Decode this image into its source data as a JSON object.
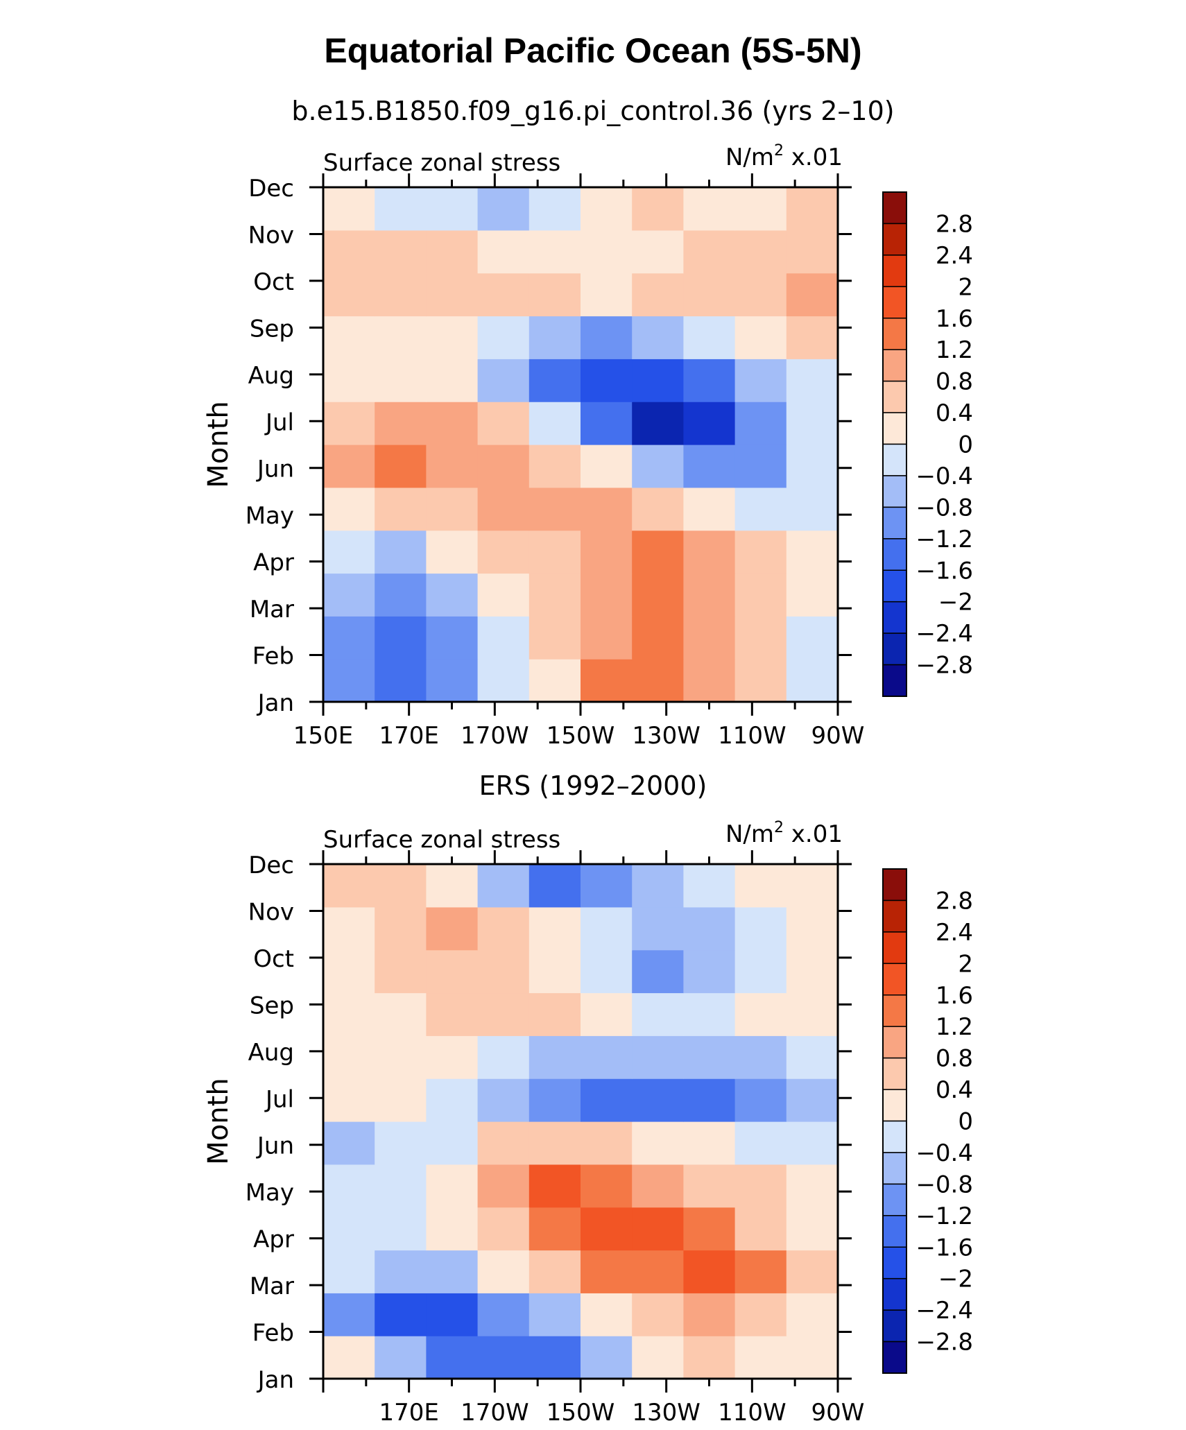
{
  "title": "Equatorial Pacific Ocean (5S-5N)",
  "panels": [
    {
      "subtitle": "b.e15.B1850.f09_g16.pi_control.36 (yrs 2–10)",
      "left_label": "Surface zonal stress",
      "right_label_units": "N/m",
      "right_label_exp": "2",
      "right_label_scale": " x.01"
    },
    {
      "subtitle": "ERS (1992–2000)",
      "left_label": "Surface zonal stress",
      "right_label_units": "N/m",
      "right_label_exp": "2",
      "right_label_scale": " x.01"
    }
  ],
  "chart_data": [
    {
      "type": "heatmap",
      "panel": "top",
      "title": "b.e15.B1850.f09_g16.pi_control.36 (yrs 2–10)",
      "field": "Surface zonal stress",
      "units": "N/m2 x.01",
      "xlabel": "",
      "ylabel": "Month",
      "x_categories": [
        "150E",
        "170E",
        "170W",
        "150W",
        "130W",
        "110W",
        "90W"
      ],
      "y_categories": [
        "Jan",
        "Feb",
        "Mar",
        "Apr",
        "May",
        "Jun",
        "Jul",
        "Aug",
        "Sep",
        "Oct",
        "Nov",
        "Dec"
      ],
      "values": [
        [
          -1.0,
          -1.5,
          -1.0,
          -0.3,
          0.3,
          1.2,
          1.3,
          0.9,
          0.4,
          -0.2
        ],
        [
          -0.9,
          -1.4,
          -0.9,
          -0.2,
          0.4,
          1.1,
          1.3,
          0.9,
          0.5,
          -0.1
        ],
        [
          -0.8,
          -1.0,
          -0.5,
          0.1,
          0.6,
          1.0,
          1.3,
          1.0,
          0.7,
          0.2
        ],
        [
          -0.3,
          -0.5,
          0.0,
          0.4,
          0.7,
          0.9,
          1.2,
          0.9,
          0.5,
          0.1
        ],
        [
          0.3,
          0.5,
          0.6,
          0.8,
          0.9,
          0.9,
          0.6,
          0.1,
          -0.3,
          -0.3
        ],
        [
          0.8,
          1.2,
          1.0,
          0.8,
          0.6,
          0.1,
          -0.6,
          -1.2,
          -1.0,
          -0.4
        ],
        [
          0.6,
          0.9,
          0.8,
          0.5,
          -0.2,
          -1.5,
          -2.5,
          -2.2,
          -1.1,
          -0.4
        ],
        [
          0.3,
          0.3,
          0.1,
          -0.5,
          -1.4,
          -2.0,
          -2.0,
          -1.3,
          -0.6,
          -0.1
        ],
        [
          0.3,
          0.2,
          0.1,
          -0.2,
          -0.7,
          -1.0,
          -0.8,
          -0.4,
          0.1,
          0.4
        ],
        [
          0.6,
          0.7,
          0.7,
          0.7,
          0.6,
          0.3,
          0.5,
          0.6,
          0.6,
          0.9
        ],
        [
          0.6,
          0.6,
          0.4,
          0.3,
          0.2,
          0.3,
          0.1,
          0.4,
          0.5,
          0.6
        ],
        [
          0.3,
          -0.1,
          -0.3,
          -0.5,
          -0.2,
          0.2,
          0.4,
          0.3,
          0.2,
          0.6
        ]
      ],
      "colorbar": {
        "levels": [
          -2.8,
          -2.4,
          -2,
          -1.6,
          -1.2,
          -0.8,
          -0.4,
          0,
          0.4,
          0.8,
          1.2,
          1.6,
          2,
          2.4,
          2.8
        ],
        "tick_labels": [
          "2.8",
          "2.4",
          "2",
          "1.6",
          "1.2",
          "0.8",
          "0.4",
          "0",
          "−0.4",
          "−0.8",
          "−1.2",
          "−1.6",
          "−2",
          "−2.4",
          "−2.8"
        ],
        "colors": [
          "#0a0a8a",
          "#0b25b0",
          "#1435cf",
          "#2551e8",
          "#4470ee",
          "#6d93f3",
          "#a3bdf7",
          "#d4e4fa",
          "#fde8d8",
          "#fcc9ae",
          "#f9a582",
          "#f47846",
          "#f25525",
          "#e23a10",
          "#b82305",
          "#8a0e0a"
        ]
      },
      "xlim": [
        "150E",
        "90W"
      ],
      "ylim": [
        "Jan",
        "Dec"
      ]
    },
    {
      "type": "heatmap",
      "panel": "bottom",
      "title": "ERS (1992–2000)",
      "field": "Surface zonal stress",
      "units": "N/m2 x.01",
      "xlabel": "",
      "ylabel": "Month",
      "x_categories": [
        "170E",
        "170W",
        "150W",
        "130W",
        "110W",
        "90W"
      ],
      "y_categories": [
        "Jan",
        "Feb",
        "Mar",
        "Apr",
        "May",
        "Jun",
        "Jul",
        "Aug",
        "Sep",
        "Oct",
        "Nov",
        "Dec"
      ],
      "values": [
        [
          0.1,
          -0.8,
          -1.3,
          -1.6,
          -1.4,
          -0.6,
          0.0,
          0.4,
          0.2,
          0.3
        ],
        [
          -0.9,
          -1.8,
          -1.7,
          -1.1,
          -0.6,
          0.1,
          0.6,
          0.8,
          0.6,
          0.3
        ],
        [
          -0.3,
          -0.7,
          -0.5,
          0.2,
          0.7,
          1.2,
          1.5,
          1.9,
          1.2,
          0.5
        ],
        [
          -0.1,
          -0.2,
          0.0,
          0.6,
          1.4,
          1.9,
          1.6,
          1.2,
          0.7,
          0.3
        ],
        [
          -0.2,
          -0.1,
          0.2,
          1.1,
          1.6,
          1.4,
          0.9,
          0.6,
          0.4,
          0.1
        ],
        [
          -0.6,
          -0.3,
          -0.2,
          0.4,
          0.6,
          0.5,
          0.3,
          0.0,
          -0.2,
          -0.1
        ],
        [
          0.0,
          0.0,
          -0.2,
          -0.5,
          -1.1,
          -1.5,
          -1.3,
          -1.4,
          -1.0,
          -0.7
        ],
        [
          0.2,
          0.3,
          0.0,
          -0.3,
          -0.7,
          -0.8,
          -0.6,
          -0.7,
          -0.5,
          -0.3
        ],
        [
          0.2,
          0.3,
          0.5,
          0.7,
          0.6,
          0.0,
          -0.2,
          -0.2,
          0.0,
          0.1
        ],
        [
          0.2,
          0.4,
          0.5,
          0.5,
          0.3,
          -0.2,
          -0.9,
          -0.5,
          -0.3,
          0.1
        ],
        [
          0.3,
          0.5,
          0.8,
          0.6,
          0.3,
          -0.3,
          -0.8,
          -0.6,
          -0.2,
          0.1
        ],
        [
          0.5,
          0.4,
          0.1,
          -0.7,
          -1.6,
          -1.2,
          -0.5,
          -0.3,
          0.0,
          0.1
        ]
      ],
      "colorbar": {
        "levels": [
          -2.8,
          -2.4,
          -2,
          -1.6,
          -1.2,
          -0.8,
          -0.4,
          0,
          0.4,
          0.8,
          1.2,
          1.6,
          2,
          2.4,
          2.8
        ],
        "tick_labels": [
          "2.8",
          "2.4",
          "2",
          "1.6",
          "1.2",
          "0.8",
          "0.4",
          "0",
          "−0.4",
          "−0.8",
          "−1.2",
          "−1.6",
          "−2",
          "−2.4",
          "−2.8"
        ],
        "colors": [
          "#0a0a8a",
          "#0b25b0",
          "#1435cf",
          "#2551e8",
          "#4470ee",
          "#6d93f3",
          "#a3bdf7",
          "#d4e4fa",
          "#fde8d8",
          "#fcc9ae",
          "#f9a582",
          "#f47846",
          "#f25525",
          "#e23a10",
          "#b82305",
          "#8a0e0a"
        ]
      },
      "xlim": [
        "150E",
        "90W"
      ],
      "ylim": [
        "Jan",
        "Dec"
      ]
    }
  ]
}
